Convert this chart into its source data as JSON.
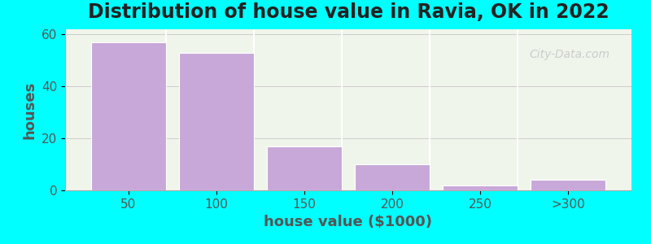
{
  "title": "Distribution of house value in Ravia, OK in 2022",
  "xlabel": "house value ($1000)",
  "ylabel": "houses",
  "bar_labels": [
    "50",
    "100",
    "150",
    "200",
    "250",
    ">300"
  ],
  "bar_values": [
    57,
    53,
    17,
    10,
    2,
    4
  ],
  "bar_color": "#C8A8D8",
  "bar_edge_color": "#FFFFFF",
  "background_color": "#00FFFF",
  "plot_bg_start": "#F0F8E8",
  "plot_bg_end": "#FFFFFF",
  "yticks": [
    0,
    20,
    40,
    60
  ],
  "ylim": [
    0,
    62
  ],
  "title_fontsize": 17,
  "axis_label_fontsize": 13,
  "tick_fontsize": 11,
  "watermark_text": "City-Data.com"
}
